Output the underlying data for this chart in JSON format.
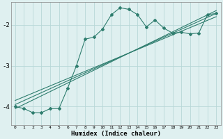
{
  "xlabel": "Humidex (Indice chaleur)",
  "ylabel": "",
  "bg_color": "#dff0f0",
  "grid_color": "#b8d8d8",
  "line_color": "#2e7d6e",
  "xlim": [
    -0.5,
    23.5
  ],
  "ylim": [
    -4.45,
    -1.45
  ],
  "yticks": [
    -4,
    -3,
    -2
  ],
  "xticks": [
    0,
    1,
    2,
    3,
    4,
    5,
    6,
    7,
    8,
    9,
    10,
    11,
    12,
    13,
    14,
    15,
    16,
    17,
    18,
    19,
    20,
    21,
    22,
    23
  ],
  "curve_x": [
    0,
    1,
    2,
    3,
    4,
    5,
    6,
    7,
    8,
    9,
    10,
    11,
    12,
    13,
    14,
    15,
    16,
    17,
    18,
    19,
    20,
    21,
    22,
    23
  ],
  "curve_y": [
    -4.0,
    -4.05,
    -4.15,
    -4.15,
    -4.05,
    -4.05,
    -3.55,
    -3.0,
    -2.35,
    -2.3,
    -2.1,
    -1.75,
    -1.58,
    -1.62,
    -1.75,
    -2.05,
    -1.88,
    -2.08,
    -2.2,
    -2.18,
    -2.22,
    -2.2,
    -1.75,
    -1.72
  ],
  "line1_x": [
    0,
    23
  ],
  "line1_y": [
    -4.05,
    -1.65
  ],
  "line2_x": [
    0,
    23
  ],
  "line2_y": [
    -3.95,
    -1.72
  ],
  "line3_x": [
    0,
    23
  ],
  "line3_y": [
    -3.85,
    -1.8
  ]
}
